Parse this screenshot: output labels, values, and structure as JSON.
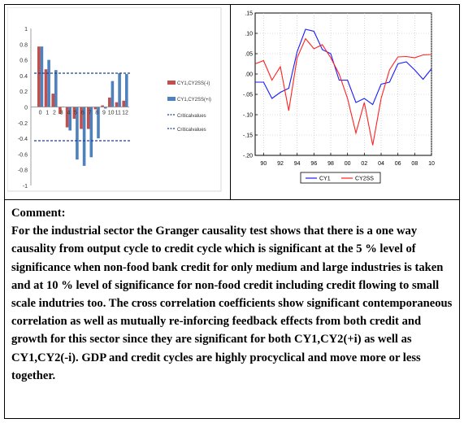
{
  "left_chart": {
    "y_ticks": [
      "1",
      "0.8",
      "0.6",
      "0.4",
      "0.2",
      "0",
      "-0.2",
      "-0.4",
      "-0.6",
      "-0.8",
      "-1"
    ]
  },
  "right_chart": {
    "y_ticks": [
      ".15",
      ".10",
      ".05",
      ".00",
      "-.05",
      "-.10",
      "-.15",
      "-.20"
    ],
    "x_ticks": [
      "90",
      "92",
      "94",
      "96",
      "98",
      "00",
      "02",
      "04",
      "06",
      "08",
      "10"
    ]
  },
  "comment": {
    "heading": "Comment:",
    "body": "For the industrial sector the Granger causality test shows that there is a one way causality from output cycle to credit cycle which is significant at the 5 % level of significance when non-food bank credit for only medium and large industries is taken and at 10 % level of significance for non-food credit including credit flowing to small scale indutries too. The cross correlation coefficients show significant contemporaneous correlation as well as mutually re-inforcing feedback effects from both credit and growth for this sector since they are significant for both CY1,CY2(+i) as well as CY1,CY2(-i). GDP and credit cycles are highly procyclical and move more or less together."
  },
  "colors": {
    "red_series": "#c0504d",
    "blue_series": "#4f81bd",
    "critical": "#1f3f8f",
    "line_cy1": "#1a1aff",
    "line_cy2ss": "#ff2020"
  },
  "chart_data": [
    {
      "type": "bar",
      "title": "",
      "categories": [
        "0",
        "1",
        "2",
        "3",
        "4",
        "5",
        "6",
        "7",
        "8",
        "9",
        "10",
        "11",
        "12"
      ],
      "series": [
        {
          "name": "CY1,CY2SS(-i)",
          "values": [
            0.77,
            0.48,
            0.17,
            -0.09,
            -0.26,
            -0.15,
            -0.28,
            -0.28,
            -0.03,
            0.02,
            0.12,
            0.06,
            0.08
          ]
        },
        {
          "name": "CY1,CY2SS(+i)",
          "values": [
            0.77,
            0.6,
            0.47,
            0.0,
            -0.3,
            -0.67,
            -0.75,
            -0.64,
            -0.4,
            -0.02,
            0.33,
            0.43,
            0.42
          ]
        }
      ],
      "critical_values": [
        {
          "name": "Criticalvalues",
          "value": 0.43
        },
        {
          "name": "Criticalvalues",
          "value": -0.43
        }
      ],
      "ylim": [
        -1,
        1
      ],
      "legend": "right"
    },
    {
      "type": "line",
      "title": "",
      "x": [
        1989,
        1990,
        1991,
        1992,
        1993,
        1994,
        1995,
        1996,
        1997,
        1998,
        1999,
        2000,
        2001,
        2002,
        2003,
        2004,
        2005,
        2006,
        2007,
        2008,
        2009,
        2010
      ],
      "series": [
        {
          "name": "CY1",
          "values": [
            -0.02,
            -0.02,
            -0.06,
            -0.045,
            -0.035,
            0.055,
            0.11,
            0.105,
            0.06,
            0.05,
            -0.015,
            -0.015,
            -0.07,
            -0.06,
            -0.075,
            -0.025,
            -0.02,
            0.025,
            0.03,
            0.01,
            -0.013,
            0.013
          ]
        },
        {
          "name": "CY2SS",
          "values": [
            0.025,
            0.033,
            -0.015,
            0.018,
            -0.09,
            0.04,
            0.087,
            0.062,
            0.072,
            0.04,
            0.0,
            -0.06,
            -0.145,
            -0.07,
            -0.175,
            -0.06,
            0.01,
            0.042,
            0.043,
            0.04,
            0.047,
            0.048
          ]
        }
      ],
      "ylim": [
        -0.2,
        0.15
      ],
      "legend": "bottom"
    }
  ]
}
